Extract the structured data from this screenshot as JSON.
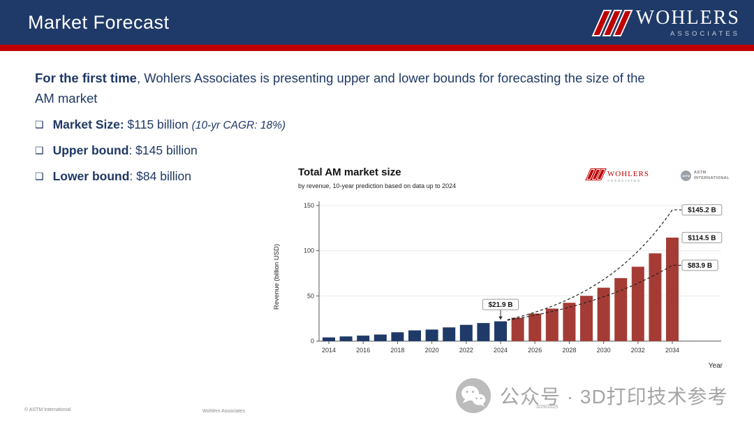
{
  "slide": {
    "title": "Market Forecast",
    "intro_bold": "For the first time",
    "intro_rest": ", Wohlers Associates is presenting upper and lower bounds for forecasting the size of the\nAM market",
    "bullet_glyph": "❑",
    "bullets": [
      {
        "label": "Market Size:",
        "value": " $115 billion ",
        "note": "(10-yr CAGR: 18%)"
      },
      {
        "label": "Upper bound",
        "value": ": $145 billion",
        "note": ""
      },
      {
        "label": "Lower bound",
        "value": ": $84 billion",
        "note": ""
      }
    ]
  },
  "header_logo": {
    "brand": "WOHLERS",
    "sub": "ASSOCIATES"
  },
  "chart": {
    "logos": {
      "wohlers_brand": "WOHLERS",
      "wohlers_sub": "ASSOCIATES",
      "astm_circle": "ASTM",
      "astm_text": "ASTM INTERNATIONAL"
    }
  },
  "chart_data": {
    "type": "bar",
    "title": "Total AM market size",
    "subtitle": "by revenue, 10-year prediction based on data up to 2024",
    "xlabel": "Year",
    "ylabel": "Revenue (billion USD)",
    "ylim": [
      0,
      150
    ],
    "yticks": [
      0,
      50,
      100,
      150
    ],
    "xticks": [
      2014,
      2016,
      2018,
      2020,
      2022,
      2024,
      2026,
      2028,
      2030,
      2032,
      2034
    ],
    "bars": [
      {
        "year": 2014,
        "value": 4.1,
        "segment": "historical"
      },
      {
        "year": 2015,
        "value": 5.2,
        "segment": "historical"
      },
      {
        "year": 2016,
        "value": 6.1,
        "segment": "historical"
      },
      {
        "year": 2017,
        "value": 7.3,
        "segment": "historical"
      },
      {
        "year": 2018,
        "value": 9.8,
        "segment": "historical"
      },
      {
        "year": 2019,
        "value": 11.9,
        "segment": "historical"
      },
      {
        "year": 2020,
        "value": 12.8,
        "segment": "historical"
      },
      {
        "year": 2021,
        "value": 15.2,
        "segment": "historical"
      },
      {
        "year": 2022,
        "value": 18.0,
        "segment": "historical"
      },
      {
        "year": 2023,
        "value": 20.0,
        "segment": "historical"
      },
      {
        "year": 2024,
        "value": 21.9,
        "segment": "historical"
      },
      {
        "year": 2025,
        "value": 25.8,
        "segment": "forecast"
      },
      {
        "year": 2026,
        "value": 30.5,
        "segment": "forecast"
      },
      {
        "year": 2027,
        "value": 36.0,
        "segment": "forecast"
      },
      {
        "year": 2028,
        "value": 42.4,
        "segment": "forecast"
      },
      {
        "year": 2029,
        "value": 50.1,
        "segment": "forecast"
      },
      {
        "year": 2030,
        "value": 59.1,
        "segment": "forecast"
      },
      {
        "year": 2031,
        "value": 69.7,
        "segment": "forecast"
      },
      {
        "year": 2032,
        "value": 82.3,
        "segment": "forecast"
      },
      {
        "year": 2033,
        "value": 97.1,
        "segment": "forecast"
      },
      {
        "year": 2034,
        "value": 114.5,
        "segment": "forecast"
      }
    ],
    "bounds": {
      "upper": {
        "start_year": 2024,
        "start_value": 21.9,
        "end_year": 2034,
        "end_value": 145.2
      },
      "lower": {
        "start_year": 2024,
        "start_value": 21.9,
        "end_year": 2034,
        "end_value": 83.9
      }
    },
    "annotations": [
      {
        "label": "$21.9 B",
        "year": 2024,
        "value": 21.9,
        "placement": "above-bar"
      },
      {
        "label": "$145.2 B",
        "value": 145.2,
        "placement": "right"
      },
      {
        "label": "$114.5 B",
        "value": 114.5,
        "placement": "right"
      },
      {
        "label": "$83.9 B",
        "value": 83.9,
        "placement": "right"
      }
    ]
  },
  "footer": {
    "left": "© ASTM International",
    "center": "Wohlers Associates",
    "date": "3/29/2025"
  },
  "watermark": {
    "text": "公众号 · 3D打印技术参考"
  },
  "colors": {
    "navy": "#1f3a68",
    "accent_red": "#c00000",
    "text_navy": "#1f3864",
    "bar_historical": "#1f3a68",
    "bar_forecast": "#a43c35",
    "bound_line": "#222222"
  }
}
